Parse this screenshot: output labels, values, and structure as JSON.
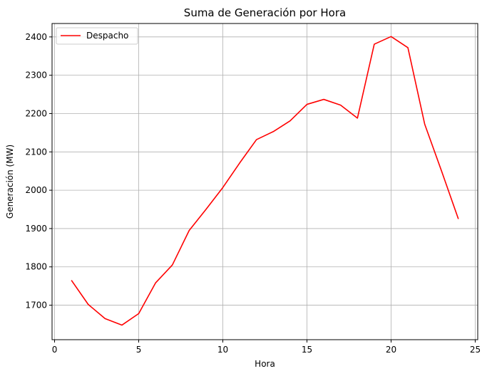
{
  "chart_data": {
    "type": "line",
    "title": "Suma de Generación por Hora",
    "xlabel": "Hora",
    "ylabel": "Generación (MW)",
    "xlim": [
      -0.15,
      25.15
    ],
    "ylim": [
      1610,
      2435
    ],
    "xticks": [
      0,
      5,
      10,
      15,
      20,
      25
    ],
    "yticks": [
      1700,
      1800,
      1900,
      2000,
      2100,
      2200,
      2300,
      2400
    ],
    "grid": true,
    "legend": {
      "position": "top-left"
    },
    "series": [
      {
        "name": "Despacho",
        "color": "#ff0000",
        "x": [
          1,
          2,
          3,
          4,
          5,
          6,
          7,
          8,
          9,
          10,
          11,
          12,
          13,
          14,
          15,
          16,
          17,
          18,
          19,
          20,
          21,
          22,
          23,
          24
        ],
        "values": [
          1765,
          1702,
          1665,
          1648,
          1678,
          1758,
          1805,
          1895,
          1950,
          2007,
          2071,
          2132,
          2153,
          2181,
          2224,
          2237,
          2222,
          2188,
          2381,
          2401,
          2372,
          2172,
          2050,
          1925
        ]
      }
    ]
  }
}
